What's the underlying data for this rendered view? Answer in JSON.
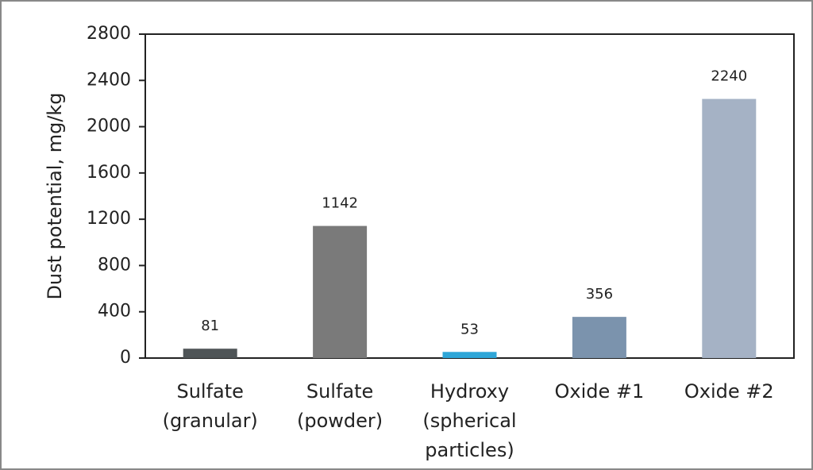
{
  "chart_data": {
    "type": "bar",
    "y_label": "Dust potential, mg/kg",
    "categories": [
      [
        "Sulfate",
        "(granular)"
      ],
      [
        "Sulfate",
        "(powder)"
      ],
      [
        "Hydroxy",
        "(spherical",
        "particles)"
      ],
      [
        "Oxide #1"
      ],
      [
        "Oxide #2"
      ]
    ],
    "values": [
      81,
      1142,
      53,
      356,
      2240
    ],
    "colors": [
      "#4f5557",
      "#7a7a7a",
      "#2ea6d8",
      "#7b93ad",
      "#a5b2c5"
    ],
    "ylim": [
      0,
      2800
    ],
    "yticks": [
      0,
      400,
      800,
      1200,
      1600,
      2000,
      2400,
      2800
    ],
    "grid": false
  }
}
